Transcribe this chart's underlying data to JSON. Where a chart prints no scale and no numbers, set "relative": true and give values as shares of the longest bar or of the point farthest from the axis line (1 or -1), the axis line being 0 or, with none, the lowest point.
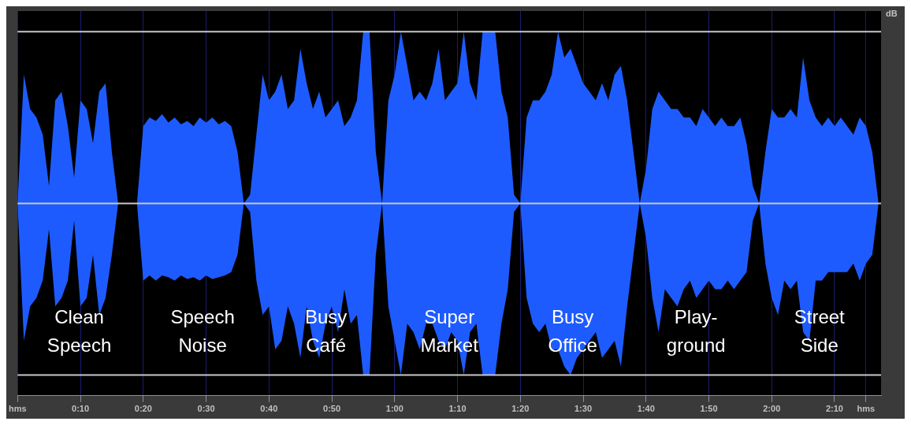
{
  "chart_data": {
    "type": "area",
    "relative": true,
    "ylabel": "dB",
    "x": [
      0,
      1,
      2,
      3,
      4,
      5,
      6,
      7,
      8,
      9,
      10,
      11,
      12,
      13,
      14,
      15,
      16,
      17,
      18,
      19,
      20,
      21,
      22,
      23,
      24,
      25,
      26,
      27,
      28,
      29,
      30,
      31,
      32,
      33,
      34,
      35,
      36,
      37,
      38,
      39,
      40,
      41,
      42,
      43,
      44,
      45,
      46,
      47,
      48,
      49,
      50,
      51,
      52,
      53,
      54,
      55,
      56,
      57,
      58,
      59,
      60,
      61,
      62,
      63,
      64,
      65,
      66,
      67,
      68,
      69,
      70,
      71,
      72,
      73,
      74,
      75,
      76,
      77,
      78,
      79,
      80,
      81,
      82,
      83,
      84,
      85,
      86,
      87,
      88,
      89,
      90,
      91,
      92,
      93,
      94,
      95,
      96,
      97,
      98,
      99,
      100,
      101,
      102,
      103,
      104,
      105,
      106,
      107,
      108,
      109,
      110,
      111,
      112,
      113,
      114,
      115,
      116,
      117,
      118,
      119,
      120,
      121,
      122,
      123,
      124,
      125,
      126,
      127,
      128,
      129,
      130,
      131,
      132,
      133,
      134,
      135,
      136,
      137
    ],
    "series": [
      {
        "color": "#1e5bff",
        "values": [
          0,
          0.75,
          0.55,
          0.5,
          0.4,
          0.1,
          0.6,
          0.65,
          0.45,
          0.15,
          0.6,
          0.55,
          0.35,
          0.65,
          0.7,
          0.3,
          0,
          0,
          0,
          0,
          0.45,
          0.5,
          0.48,
          0.52,
          0.47,
          0.5,
          0.46,
          0.48,
          0.45,
          0.5,
          0.47,
          0.5,
          0.46,
          0.48,
          0.45,
          0.3,
          0,
          0.05,
          0.4,
          0.75,
          0.6,
          0.65,
          0.75,
          0.55,
          0.6,
          0.9,
          0.7,
          0.55,
          0.65,
          0.5,
          0.55,
          0.6,
          0.45,
          0.5,
          0.6,
          1,
          1,
          0.3,
          0,
          0.6,
          0.75,
          1,
          0.8,
          0.6,
          0.65,
          0.6,
          0.7,
          0.9,
          0.6,
          0.65,
          0.7,
          1,
          0.7,
          0.6,
          1,
          1,
          1,
          0.65,
          0.5,
          0.05,
          0,
          0.5,
          0.6,
          0.6,
          0.65,
          0.75,
          1,
          0.85,
          0.9,
          0.8,
          0.7,
          0.65,
          0.6,
          0.7,
          0.6,
          0.75,
          0.8,
          0.6,
          0.3,
          0,
          0.2,
          0.55,
          0.65,
          0.6,
          0.55,
          0.55,
          0.5,
          0.5,
          0.45,
          0.55,
          0.5,
          0.45,
          0.5,
          0.45,
          0.45,
          0.5,
          0.35,
          0.1,
          0,
          0.3,
          0.55,
          0.5,
          0.5,
          0.55,
          0.5,
          0.85,
          0.6,
          0.5,
          0.45,
          0.5,
          0.45,
          0.5,
          0.45,
          0.4,
          0.5,
          0.45,
          0.3,
          0
        ]
      },
      {
        "color": "#1e5bff",
        "values": [
          0,
          -0.8,
          -0.6,
          -0.55,
          -0.45,
          -0.15,
          -0.6,
          -0.55,
          -0.45,
          -0.1,
          -0.6,
          -0.55,
          -0.3,
          -0.65,
          -0.55,
          -0.3,
          0,
          0,
          0,
          0,
          -0.45,
          -0.42,
          -0.45,
          -0.42,
          -0.43,
          -0.45,
          -0.42,
          -0.44,
          -0.43,
          -0.45,
          -0.42,
          -0.44,
          -0.43,
          -0.42,
          -0.4,
          -0.3,
          0,
          -0.05,
          -0.45,
          -0.65,
          -0.6,
          -0.85,
          -0.8,
          -0.6,
          -0.7,
          -0.9,
          -0.6,
          -0.8,
          -0.9,
          -0.7,
          -0.6,
          -0.75,
          -0.5,
          -0.7,
          -0.65,
          -1,
          -1,
          -0.3,
          0,
          -0.6,
          -0.8,
          -1,
          -0.7,
          -0.75,
          -0.85,
          -0.7,
          -0.7,
          -0.8,
          -0.85,
          -0.75,
          -0.8,
          -1,
          -0.75,
          -0.7,
          -1,
          -1,
          -1,
          -0.7,
          -0.5,
          -0.05,
          0,
          -0.55,
          -0.7,
          -0.75,
          -0.7,
          -0.85,
          -0.85,
          -0.95,
          -1,
          -0.9,
          -0.85,
          -0.8,
          -0.75,
          -0.9,
          -0.85,
          -0.8,
          -0.95,
          -0.6,
          -0.3,
          0,
          -0.2,
          -0.55,
          -0.75,
          -0.5,
          -0.55,
          -0.6,
          -0.5,
          -0.45,
          -0.55,
          -0.5,
          -0.45,
          -0.5,
          -0.5,
          -0.45,
          -0.5,
          -0.45,
          -0.4,
          -0.1,
          0,
          -0.35,
          -0.55,
          -0.65,
          -0.45,
          -0.5,
          -0.45,
          -0.75,
          -0.8,
          -0.45,
          -0.45,
          -0.4,
          -0.4,
          -0.4,
          -0.4,
          -0.35,
          -0.45,
          -0.35,
          -0.3,
          0
        ]
      }
    ],
    "xlim": [
      0,
      137.4
    ],
    "xticks": [
      {
        "value": 0,
        "label": "hms"
      },
      {
        "value": 10,
        "label": "0:10"
      },
      {
        "value": 20,
        "label": "0:20"
      },
      {
        "value": 30,
        "label": "0:30"
      },
      {
        "value": 40,
        "label": "0:40"
      },
      {
        "value": 50,
        "label": "0:50"
      },
      {
        "value": 60,
        "label": "1:00"
      },
      {
        "value": 70,
        "label": "1:10"
      },
      {
        "value": 80,
        "label": "1:20"
      },
      {
        "value": 90,
        "label": "1:30"
      },
      {
        "value": 100,
        "label": "1:40"
      },
      {
        "value": 110,
        "label": "1:50"
      },
      {
        "value": 120,
        "label": "2:00"
      },
      {
        "value": 130,
        "label": "2:10"
      },
      {
        "value": 135,
        "label": "hms"
      }
    ],
    "grid": "x",
    "ref_lines": [
      {
        "axis": "y",
        "value": 1,
        "color": "#c8c8c8"
      },
      {
        "axis": "y",
        "value": -1,
        "color": "#c8c8c8"
      }
    ],
    "annotations": [
      "Clean\nSpeech",
      "Speech\nNoise",
      "Busy\nCafé",
      "Super\nMarket",
      "Busy\nOffice",
      "Play-\nground",
      "Street\nSide"
    ]
  }
}
